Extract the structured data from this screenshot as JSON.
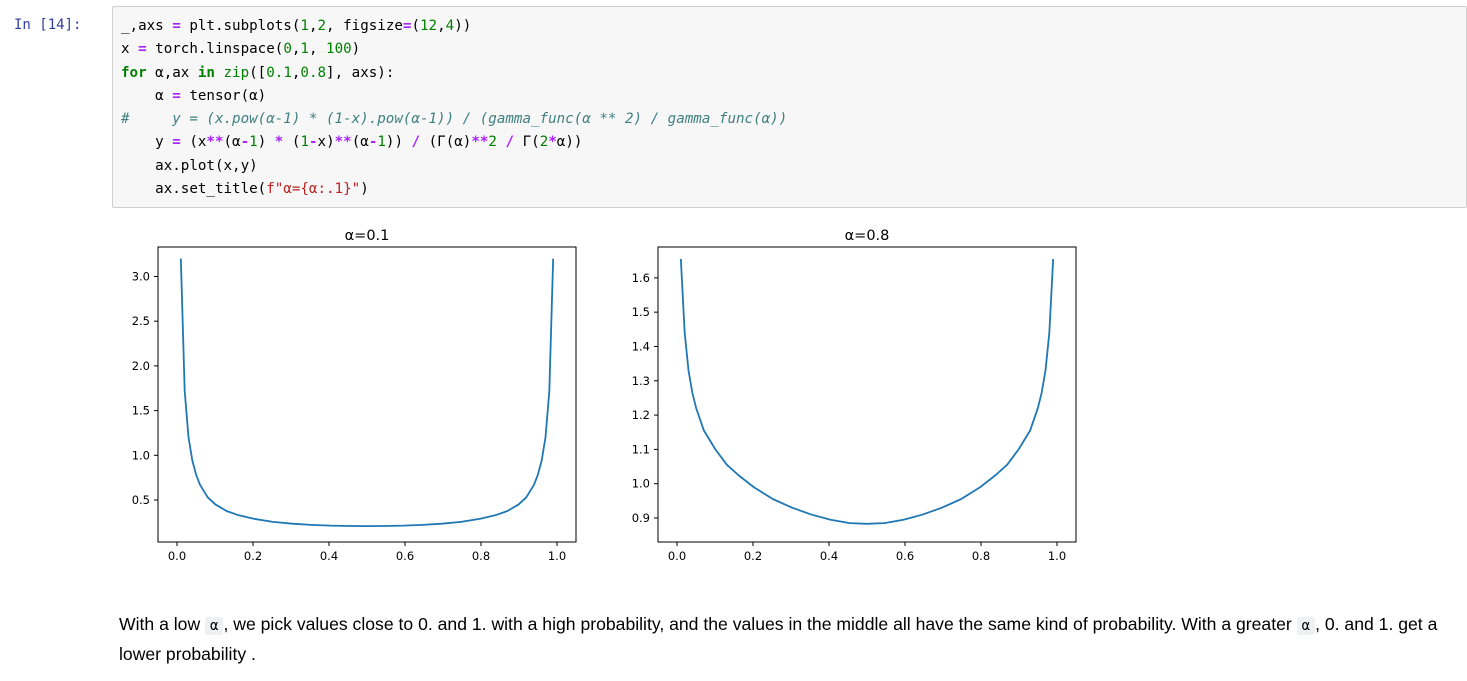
{
  "cell": {
    "prompt": "In [14]:",
    "code_lines": [
      [
        {
          "t": "_,axs "
        },
        {
          "t": "=",
          "c": "op"
        },
        {
          "t": " plt.subplots("
        },
        {
          "t": "1",
          "c": "num"
        },
        {
          "t": ","
        },
        {
          "t": "2",
          "c": "num"
        },
        {
          "t": ", figsize"
        },
        {
          "t": "=",
          "c": "op"
        },
        {
          "t": "("
        },
        {
          "t": "12",
          "c": "num"
        },
        {
          "t": ","
        },
        {
          "t": "4",
          "c": "num"
        },
        {
          "t": "))"
        }
      ],
      [
        {
          "t": "x "
        },
        {
          "t": "=",
          "c": "op"
        },
        {
          "t": " torch.linspace("
        },
        {
          "t": "0",
          "c": "num"
        },
        {
          "t": ","
        },
        {
          "t": "1",
          "c": "num"
        },
        {
          "t": ", "
        },
        {
          "t": "100",
          "c": "num"
        },
        {
          "t": ")"
        }
      ],
      [
        {
          "t": "for",
          "c": "kw"
        },
        {
          "t": " α,ax "
        },
        {
          "t": "in",
          "c": "kw"
        },
        {
          "t": " "
        },
        {
          "t": "zip",
          "c": "bi"
        },
        {
          "t": "(["
        },
        {
          "t": "0.1",
          "c": "num"
        },
        {
          "t": ","
        },
        {
          "t": "0.8",
          "c": "num"
        },
        {
          "t": "], axs):"
        }
      ],
      [
        {
          "t": "    α "
        },
        {
          "t": "=",
          "c": "op"
        },
        {
          "t": " tensor(α)"
        }
      ],
      [
        {
          "t": "#     y = (x.pow(α-1) * (1-x).pow(α-1)) / (gamma_func(α ** 2) / gamma_func(α))",
          "c": "cm"
        }
      ],
      [
        {
          "t": "    y "
        },
        {
          "t": "=",
          "c": "op"
        },
        {
          "t": " (x"
        },
        {
          "t": "**",
          "c": "op"
        },
        {
          "t": "(α"
        },
        {
          "t": "-",
          "c": "op"
        },
        {
          "t": "1",
          "c": "num"
        },
        {
          "t": ") "
        },
        {
          "t": "*",
          "c": "op"
        },
        {
          "t": " ("
        },
        {
          "t": "1",
          "c": "num"
        },
        {
          "t": "-",
          "c": "op"
        },
        {
          "t": "x)"
        },
        {
          "t": "**",
          "c": "op"
        },
        {
          "t": "(α"
        },
        {
          "t": "-",
          "c": "op"
        },
        {
          "t": "1",
          "c": "num"
        },
        {
          "t": ")) "
        },
        {
          "t": "/",
          "c": "op"
        },
        {
          "t": " (Γ(α)"
        },
        {
          "t": "**",
          "c": "op"
        },
        {
          "t": "2",
          "c": "num"
        },
        {
          "t": " "
        },
        {
          "t": "/",
          "c": "op"
        },
        {
          "t": " Γ("
        },
        {
          "t": "2",
          "c": "num"
        },
        {
          "t": "*",
          "c": "op"
        },
        {
          "t": "α))"
        }
      ],
      [
        {
          "t": "    ax.plot(x,y)"
        }
      ],
      [
        {
          "t": "    ax.set_title("
        },
        {
          "t": "f\"α={α:.1}\"",
          "c": "str"
        },
        {
          "t": ")"
        }
      ]
    ]
  },
  "colors": {
    "line": "#1f77b4",
    "prompt": "#303f9f"
  },
  "chart_data": [
    {
      "type": "line",
      "title": "α=0.1",
      "xlabel": "",
      "ylabel": "",
      "xlim": [
        -0.05,
        1.05
      ],
      "ylim": [
        0.03,
        3.33
      ],
      "xticks": [
        0.0,
        0.2,
        0.4,
        0.6,
        0.8,
        1.0
      ],
      "xtick_labels": [
        "0.0",
        "0.2",
        "0.4",
        "0.6",
        "0.8",
        "1.0"
      ],
      "yticks": [
        0.5,
        1.0,
        1.5,
        2.0,
        2.5,
        3.0
      ],
      "ytick_labels": [
        "0.5",
        "1.0",
        "1.5",
        "2.0",
        "2.5",
        "3.0"
      ],
      "grid": false,
      "series": [
        {
          "x": [
            0.0101,
            0.0202,
            0.0303,
            0.0404,
            0.0505,
            0.0606,
            0.0808,
            0.101,
            0.1313,
            0.1616,
            0.202,
            0.2525,
            0.303,
            0.3535,
            0.404,
            0.4545,
            0.5,
            0.5455,
            0.596,
            0.6465,
            0.697,
            0.7475,
            0.798,
            0.8384,
            0.8687,
            0.899,
            0.9192,
            0.9394,
            0.9495,
            0.9596,
            0.9697,
            0.9798,
            0.9899
          ],
          "y": [
            3.2,
            1.72,
            1.2,
            0.94,
            0.78,
            0.67,
            0.53,
            0.45,
            0.375,
            0.33,
            0.29,
            0.255,
            0.235,
            0.222,
            0.213,
            0.209,
            0.208,
            0.209,
            0.213,
            0.222,
            0.235,
            0.255,
            0.29,
            0.33,
            0.375,
            0.45,
            0.53,
            0.67,
            0.78,
            0.94,
            1.2,
            1.72,
            3.2
          ]
        }
      ]
    },
    {
      "type": "line",
      "title": "α=0.8",
      "xlabel": "",
      "ylabel": "",
      "xlim": [
        -0.05,
        1.05
      ],
      "ylim": [
        0.83,
        1.69
      ],
      "xticks": [
        0.0,
        0.2,
        0.4,
        0.6,
        0.8,
        1.0
      ],
      "xtick_labels": [
        "0.0",
        "0.2",
        "0.4",
        "0.6",
        "0.8",
        "1.0"
      ],
      "yticks": [
        0.9,
        1.0,
        1.1,
        1.2,
        1.3,
        1.4,
        1.5,
        1.6
      ],
      "ytick_labels": [
        "0.9",
        "1.0",
        "1.1",
        "1.2",
        "1.3",
        "1.4",
        "1.5",
        "1.6"
      ],
      "grid": false,
      "series": [
        {
          "x": [
            0.0101,
            0.0202,
            0.0303,
            0.0404,
            0.0505,
            0.0707,
            0.101,
            0.1313,
            0.1616,
            0.202,
            0.2525,
            0.303,
            0.3535,
            0.404,
            0.4545,
            0.5,
            0.5455,
            0.596,
            0.6465,
            0.697,
            0.7475,
            0.798,
            0.8384,
            0.8687,
            0.899,
            0.9293,
            0.9495,
            0.9596,
            0.9697,
            0.9798,
            0.9899
          ],
          "y": [
            1.655,
            1.44,
            1.33,
            1.265,
            1.22,
            1.155,
            1.1,
            1.055,
            1.025,
            0.99,
            0.955,
            0.93,
            0.91,
            0.895,
            0.885,
            0.883,
            0.885,
            0.895,
            0.91,
            0.93,
            0.955,
            0.99,
            1.025,
            1.055,
            1.1,
            1.155,
            1.22,
            1.265,
            1.33,
            1.44,
            1.655
          ]
        }
      ]
    }
  ],
  "markdown": {
    "p1_before": "With a low ",
    "p1_code": "α",
    "p1_middle": ", we pick values close to 0. and 1. with a high probability, and the values in the middle all have the same kind of probability. With a greater ",
    "p1_code2": "α",
    "p1_after": ", 0. and 1. get a lower probability ."
  }
}
